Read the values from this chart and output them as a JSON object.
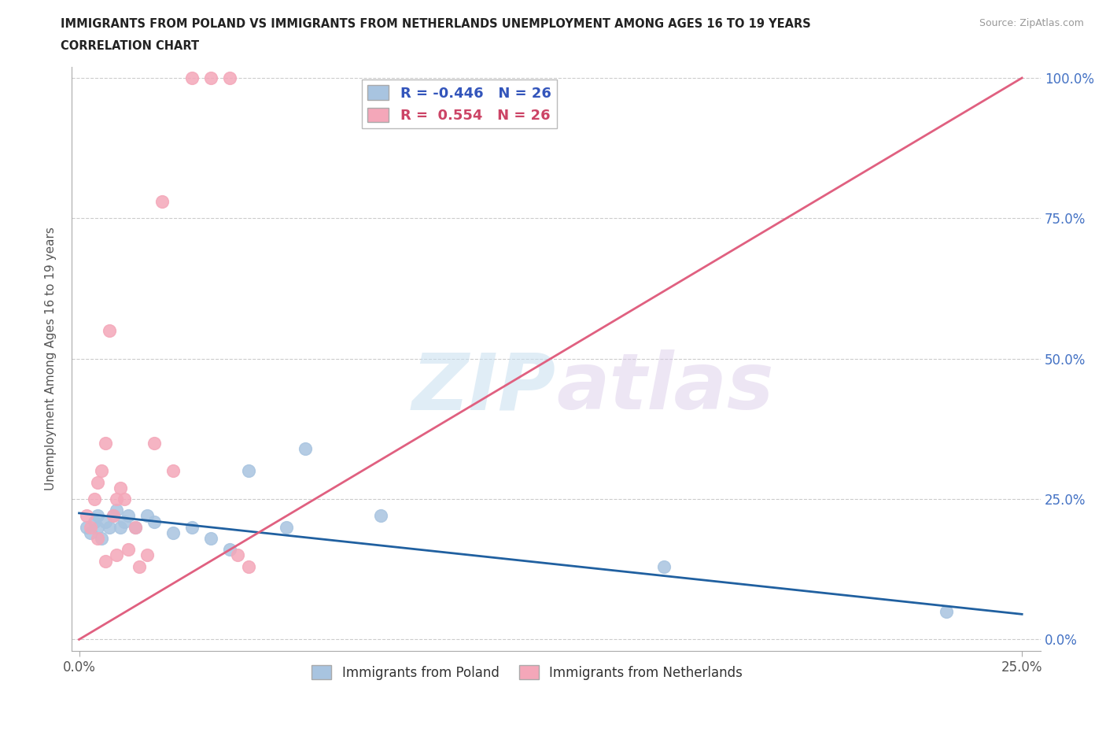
{
  "title_line1": "IMMIGRANTS FROM POLAND VS IMMIGRANTS FROM NETHERLANDS UNEMPLOYMENT AMONG AGES 16 TO 19 YEARS",
  "title_line2": "CORRELATION CHART",
  "source": "Source: ZipAtlas.com",
  "ylabel": "Unemployment Among Ages 16 to 19 years",
  "R_poland": -0.446,
  "N_poland": 26,
  "R_netherlands": 0.554,
  "N_netherlands": 26,
  "poland_color": "#a8c4e0",
  "netherlands_color": "#f4a7b9",
  "poland_line_color": "#2060a0",
  "netherlands_line_color": "#e06080",
  "watermark_zip": "ZIP",
  "watermark_atlas": "atlas",
  "xlim": [
    0.0,
    0.25
  ],
  "ylim": [
    0.0,
    1.0
  ],
  "poland_scatter_x": [
    0.002,
    0.003,
    0.004,
    0.005,
    0.005,
    0.006,
    0.007,
    0.008,
    0.009,
    0.01,
    0.011,
    0.012,
    0.013,
    0.015,
    0.018,
    0.02,
    0.025,
    0.03,
    0.035,
    0.04,
    0.045,
    0.055,
    0.06,
    0.08,
    0.155,
    0.23
  ],
  "poland_scatter_y": [
    0.2,
    0.19,
    0.21,
    0.2,
    0.22,
    0.18,
    0.21,
    0.2,
    0.22,
    0.23,
    0.2,
    0.21,
    0.22,
    0.2,
    0.22,
    0.21,
    0.19,
    0.2,
    0.18,
    0.16,
    0.3,
    0.2,
    0.34,
    0.22,
    0.13,
    0.05
  ],
  "netherlands_scatter_x": [
    0.002,
    0.003,
    0.004,
    0.005,
    0.005,
    0.006,
    0.007,
    0.007,
    0.008,
    0.009,
    0.01,
    0.01,
    0.011,
    0.012,
    0.013,
    0.015,
    0.016,
    0.018,
    0.02,
    0.022,
    0.025,
    0.03,
    0.035,
    0.04,
    0.042,
    0.045
  ],
  "netherlands_scatter_y": [
    0.22,
    0.2,
    0.25,
    0.28,
    0.18,
    0.3,
    0.35,
    0.14,
    0.55,
    0.22,
    0.25,
    0.15,
    0.27,
    0.25,
    0.16,
    0.2,
    0.13,
    0.15,
    0.35,
    0.78,
    0.3,
    1.0,
    1.0,
    1.0,
    0.15,
    0.13
  ],
  "poland_trend_x": [
    0.0,
    0.25
  ],
  "poland_trend_y": [
    0.225,
    0.045
  ],
  "netherlands_trend_x": [
    0.0,
    0.25
  ],
  "netherlands_trend_y": [
    0.0,
    1.0
  ]
}
